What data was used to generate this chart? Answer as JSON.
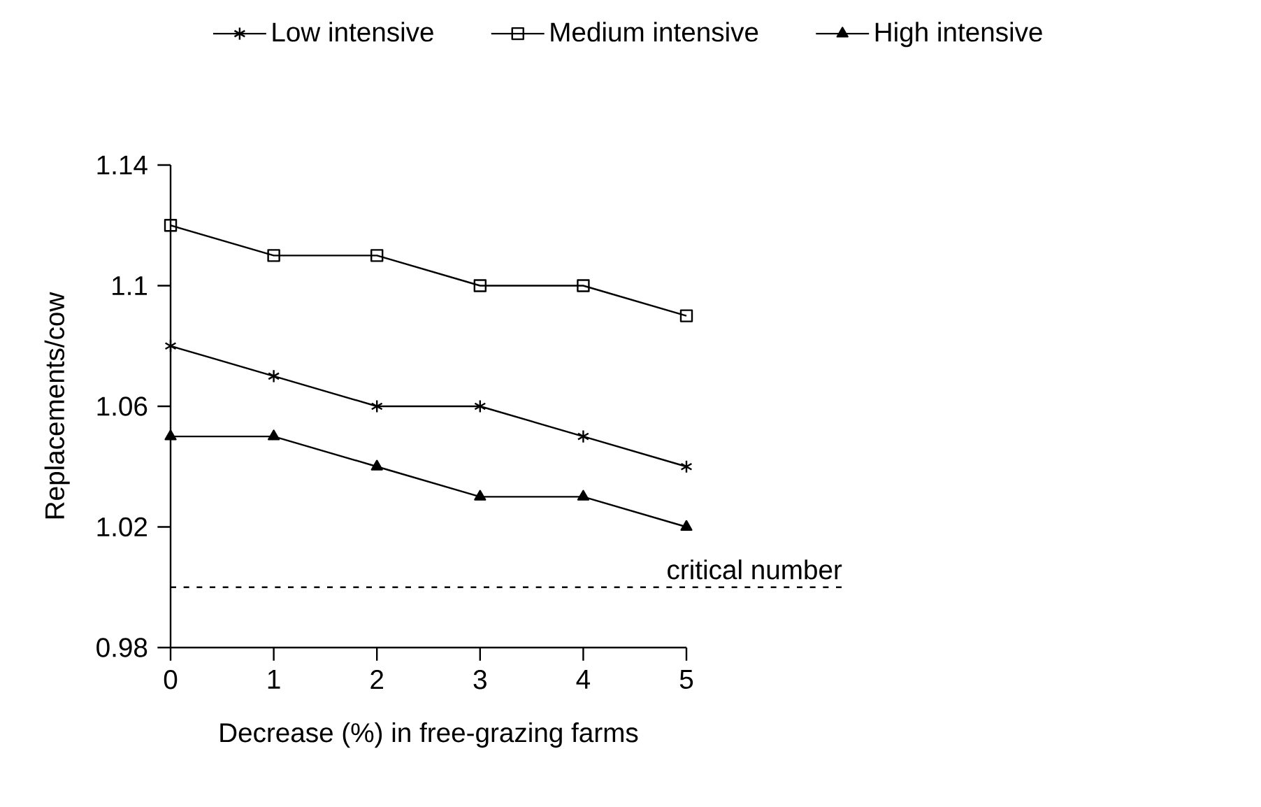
{
  "chart_data": {
    "type": "line",
    "xlabel": "Decrease (%) in free-grazing farms",
    "ylabel": "Replacements/cow",
    "x": [
      0,
      1,
      2,
      3,
      4,
      5
    ],
    "xlim": [
      0,
      5
    ],
    "xticks": [
      0,
      1,
      2,
      3,
      4,
      5
    ],
    "ylim": [
      0.98,
      1.14
    ],
    "yticks": [
      0.98,
      1.02,
      1.06,
      1.1,
      1.14
    ],
    "series": [
      {
        "name": "Low intensive",
        "color": "#000000",
        "marker": "cross",
        "line_style": "solid",
        "values": [
          1.08,
          1.07,
          1.06,
          1.06,
          1.05,
          1.04
        ]
      },
      {
        "name": "Medium intensive",
        "color": "#000000",
        "marker": "square",
        "line_style": "solid",
        "values": [
          1.12,
          1.11,
          1.11,
          1.1,
          1.1,
          1.09
        ]
      },
      {
        "name": "High intensive",
        "color": "#000000",
        "marker": "triangle",
        "line_style": "solid",
        "values": [
          1.05,
          1.05,
          1.04,
          1.03,
          1.03,
          1.02
        ]
      }
    ],
    "ref_lines": [
      {
        "axis": "y",
        "value": 1.0,
        "label": "critical number",
        "color": "#000000",
        "line_style": "dashed"
      }
    ],
    "legend": "top",
    "grid": false
  }
}
